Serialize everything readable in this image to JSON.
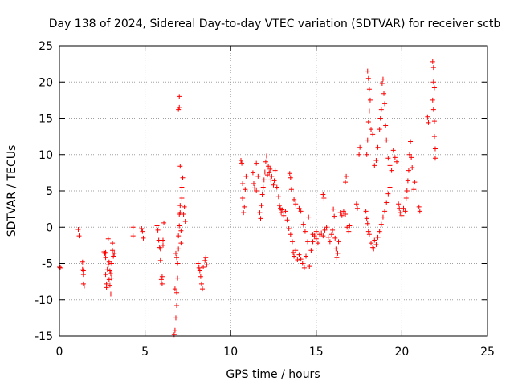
{
  "chart_data": {
    "type": "scatter",
    "title": "Day 138 of 2024, Sidereal Day-to-day VTEC variation (SDTVAR) for receiver sctb",
    "xlabel": "GPS time / hours",
    "ylabel": "SDTVAR / TECUs",
    "xlim": [
      0,
      25
    ],
    "ylim": [
      -15,
      25
    ],
    "xticks": [
      "0",
      "5",
      "10",
      "15",
      "20",
      "25"
    ],
    "yticks": [
      "-15",
      "-10",
      "-5",
      "0",
      "5",
      "10",
      "15",
      "20",
      "25"
    ],
    "grid": true,
    "marker": "+",
    "colors": {
      "series": "#ff0000",
      "grid": "#a0a0a0",
      "axis": "#000000"
    },
    "series": [
      {
        "name": "SDTVAR",
        "points": [
          [
            0.0,
            -5.5
          ],
          [
            0.05,
            -5.6
          ],
          [
            1.1,
            -0.3
          ],
          [
            1.15,
            -1.2
          ],
          [
            1.35,
            -4.8
          ],
          [
            1.35,
            -5.8
          ],
          [
            1.4,
            -6.5
          ],
          [
            1.4,
            -7.8
          ],
          [
            1.45,
            -8.1
          ],
          [
            1.4,
            -6.0
          ],
          [
            2.6,
            -3.4
          ],
          [
            2.65,
            -3.6
          ],
          [
            2.7,
            -3.5
          ],
          [
            2.7,
            -4.2
          ],
          [
            2.7,
            -6.5
          ],
          [
            2.75,
            -7.8
          ],
          [
            2.75,
            -8.3
          ],
          [
            2.8,
            -5.8
          ],
          [
            2.85,
            -5.2
          ],
          [
            2.9,
            -4.8
          ],
          [
            2.9,
            -7.2
          ],
          [
            2.95,
            -8.0
          ],
          [
            3.0,
            -6.4
          ],
          [
            3.0,
            -9.2
          ],
          [
            3.05,
            -7.0
          ],
          [
            3.05,
            -5.0
          ],
          [
            3.1,
            -3.2
          ],
          [
            3.1,
            -2.2
          ],
          [
            3.15,
            -4.0
          ],
          [
            3.2,
            -3.6
          ],
          [
            2.85,
            -1.6
          ],
          [
            2.95,
            -6.0
          ],
          [
            4.3,
            0.0
          ],
          [
            4.3,
            -1.2
          ],
          [
            4.8,
            -0.2
          ],
          [
            4.85,
            -0.6
          ],
          [
            4.9,
            -1.5
          ],
          [
            5.7,
            0.2
          ],
          [
            5.75,
            -0.4
          ],
          [
            5.8,
            -1.8
          ],
          [
            5.85,
            -2.8
          ],
          [
            5.9,
            -3.0
          ],
          [
            5.9,
            -4.6
          ],
          [
            5.95,
            -7.2
          ],
          [
            6.0,
            -7.8
          ],
          [
            6.0,
            -6.8
          ],
          [
            6.05,
            -1.8
          ],
          [
            6.1,
            0.6
          ],
          [
            6.05,
            -2.5
          ],
          [
            6.7,
            -14.8
          ],
          [
            6.75,
            -14.2
          ],
          [
            6.8,
            -12.5
          ],
          [
            6.85,
            -10.8
          ],
          [
            6.85,
            -9.0
          ],
          [
            6.9,
            -7.0
          ],
          [
            6.9,
            -5.0
          ],
          [
            6.95,
            -3.0
          ],
          [
            6.95,
            -1.2
          ],
          [
            7.0,
            0.2
          ],
          [
            7.0,
            1.8
          ],
          [
            7.05,
            3.0
          ],
          [
            7.05,
            2.0
          ],
          [
            7.1,
            -0.5
          ],
          [
            7.1,
            -2.2
          ],
          [
            7.15,
            4.0
          ],
          [
            7.15,
            5.5
          ],
          [
            7.2,
            6.8
          ],
          [
            7.25,
            1.8
          ],
          [
            7.3,
            2.8
          ],
          [
            7.35,
            0.8
          ],
          [
            7.0,
            18.0
          ],
          [
            7.0,
            16.5
          ],
          [
            6.95,
            16.2
          ],
          [
            7.05,
            8.4
          ],
          [
            6.8,
            -3.6
          ],
          [
            6.85,
            -4.2
          ],
          [
            6.75,
            -8.5
          ],
          [
            8.1,
            -5.0
          ],
          [
            8.15,
            -5.6
          ],
          [
            8.2,
            -6.0
          ],
          [
            8.25,
            -6.8
          ],
          [
            8.3,
            -7.8
          ],
          [
            8.35,
            -8.5
          ],
          [
            8.4,
            -5.5
          ],
          [
            8.5,
            -4.6
          ],
          [
            8.55,
            -4.2
          ],
          [
            8.6,
            -5.2
          ],
          [
            10.6,
            9.2
          ],
          [
            10.65,
            8.8
          ],
          [
            10.7,
            6.0
          ],
          [
            10.7,
            4.0
          ],
          [
            10.75,
            2.0
          ],
          [
            10.8,
            2.8
          ],
          [
            10.85,
            5.2
          ],
          [
            10.9,
            7.0
          ],
          [
            11.3,
            7.5
          ],
          [
            11.35,
            6.0
          ],
          [
            11.4,
            5.4
          ],
          [
            11.5,
            5.0
          ],
          [
            11.5,
            8.8
          ],
          [
            11.6,
            7.0
          ],
          [
            11.7,
            2.0
          ],
          [
            11.75,
            1.2
          ],
          [
            11.8,
            3.0
          ],
          [
            11.85,
            4.5
          ],
          [
            11.9,
            5.5
          ],
          [
            11.95,
            6.5
          ],
          [
            12.0,
            7.6
          ],
          [
            12.05,
            9.0
          ],
          [
            12.1,
            9.8
          ],
          [
            12.15,
            7.2
          ],
          [
            12.2,
            8.4
          ],
          [
            12.25,
            7.5
          ],
          [
            12.3,
            8.0
          ],
          [
            12.35,
            6.5
          ],
          [
            12.4,
            7.0
          ],
          [
            12.5,
            5.8
          ],
          [
            12.55,
            6.4
          ],
          [
            12.6,
            7.8
          ],
          [
            12.7,
            5.5
          ],
          [
            12.8,
            4.2
          ],
          [
            12.85,
            3.0
          ],
          [
            12.9,
            2.6
          ],
          [
            12.95,
            2.0
          ],
          [
            13.0,
            2.4
          ],
          [
            13.1,
            1.6
          ],
          [
            13.2,
            2.2
          ],
          [
            13.3,
            1.0
          ],
          [
            13.4,
            -0.2
          ],
          [
            13.5,
            -1.0
          ],
          [
            13.6,
            -2.0
          ],
          [
            13.65,
            -3.5
          ],
          [
            13.7,
            -4.0
          ],
          [
            13.8,
            -3.2
          ],
          [
            13.9,
            -4.5
          ],
          [
            14.0,
            -3.8
          ],
          [
            14.1,
            -4.4
          ],
          [
            14.2,
            -5.0
          ],
          [
            14.3,
            -5.6
          ],
          [
            14.4,
            -4.0
          ],
          [
            14.5,
            -2.0
          ],
          [
            13.45,
            7.4
          ],
          [
            13.5,
            6.8
          ],
          [
            13.55,
            5.2
          ],
          [
            13.7,
            3.8
          ],
          [
            13.8,
            3.2
          ],
          [
            14.0,
            2.6
          ],
          [
            14.1,
            2.2
          ],
          [
            14.25,
            0.4
          ],
          [
            14.35,
            -0.6
          ],
          [
            14.6,
            -5.4
          ],
          [
            14.7,
            -3.2
          ],
          [
            14.8,
            -2.0
          ],
          [
            14.9,
            -1.2
          ],
          [
            15.0,
            -1.6
          ],
          [
            15.1,
            -2.2
          ],
          [
            15.2,
            -1.0
          ],
          [
            15.3,
            -0.8
          ],
          [
            15.4,
            -1.2
          ],
          [
            15.5,
            -0.4
          ],
          [
            15.6,
            0.0
          ],
          [
            15.7,
            -1.4
          ],
          [
            15.8,
            -2.0
          ],
          [
            15.9,
            -1.0
          ],
          [
            15.95,
            -0.4
          ],
          [
            14.55,
            1.4
          ],
          [
            14.8,
            -1.0
          ],
          [
            15.0,
            -0.6
          ],
          [
            15.4,
            4.5
          ],
          [
            15.45,
            4.0
          ],
          [
            16.0,
            2.5
          ],
          [
            16.05,
            1.5
          ],
          [
            16.1,
            -1.5
          ],
          [
            16.15,
            -3.0
          ],
          [
            16.2,
            -4.2
          ],
          [
            16.25,
            -3.6
          ],
          [
            16.3,
            -2.0
          ],
          [
            16.4,
            2.0
          ],
          [
            16.5,
            1.6
          ],
          [
            16.6,
            2.2
          ],
          [
            16.7,
            1.8
          ],
          [
            16.8,
            0.0
          ],
          [
            16.9,
            -0.6
          ],
          [
            16.95,
            0.2
          ],
          [
            16.7,
            6.2
          ],
          [
            16.75,
            7.0
          ],
          [
            17.35,
            3.2
          ],
          [
            17.4,
            2.6
          ],
          [
            17.5,
            10.0
          ],
          [
            17.55,
            11.0
          ],
          [
            17.9,
            2.2
          ],
          [
            17.95,
            1.2
          ],
          [
            18.0,
            0.5
          ],
          [
            18.05,
            -0.6
          ],
          [
            18.1,
            -1.0
          ],
          [
            18.2,
            -2.2
          ],
          [
            18.3,
            -2.8
          ],
          [
            18.35,
            -3.0
          ],
          [
            18.4,
            -1.8
          ],
          [
            18.5,
            -2.4
          ],
          [
            18.6,
            -1.4
          ],
          [
            18.7,
            -0.6
          ],
          [
            18.8,
            0.4
          ],
          [
            18.9,
            1.4
          ],
          [
            19.0,
            2.2
          ],
          [
            19.1,
            3.4
          ],
          [
            19.2,
            4.6
          ],
          [
            19.3,
            5.5
          ],
          [
            18.0,
            21.5
          ],
          [
            18.05,
            20.5
          ],
          [
            18.1,
            19.0
          ],
          [
            18.1,
            16.0
          ],
          [
            18.05,
            14.5
          ],
          [
            18.0,
            12.0
          ],
          [
            17.95,
            10.0
          ],
          [
            18.15,
            17.5
          ],
          [
            18.2,
            13.5
          ],
          [
            18.3,
            12.8
          ],
          [
            18.4,
            8.5
          ],
          [
            18.5,
            9.2
          ],
          [
            18.6,
            11.0
          ],
          [
            18.7,
            13.5
          ],
          [
            18.75,
            15.0
          ],
          [
            18.8,
            16.2
          ],
          [
            18.85,
            19.8
          ],
          [
            18.9,
            20.4
          ],
          [
            18.95,
            18.4
          ],
          [
            19.0,
            17.0
          ],
          [
            19.05,
            14.0
          ],
          [
            19.1,
            12.0
          ],
          [
            19.2,
            9.5
          ],
          [
            19.3,
            8.5
          ],
          [
            19.4,
            7.8
          ],
          [
            19.5,
            10.6
          ],
          [
            19.6,
            9.6
          ],
          [
            19.7,
            9.0
          ],
          [
            19.8,
            3.2
          ],
          [
            19.85,
            2.6
          ],
          [
            19.9,
            2.0
          ],
          [
            20.0,
            1.6
          ],
          [
            20.1,
            2.6
          ],
          [
            20.2,
            2.2
          ],
          [
            20.25,
            4.0
          ],
          [
            20.3,
            5.0
          ],
          [
            20.35,
            6.4
          ],
          [
            20.4,
            7.8
          ],
          [
            20.45,
            10.0
          ],
          [
            20.5,
            11.8
          ],
          [
            20.55,
            9.6
          ],
          [
            20.6,
            8.2
          ],
          [
            20.7,
            5.2
          ],
          [
            20.75,
            6.2
          ],
          [
            21.0,
            2.8
          ],
          [
            21.05,
            2.2
          ],
          [
            21.5,
            15.2
          ],
          [
            21.55,
            14.4
          ],
          [
            21.8,
            22.8
          ],
          [
            21.85,
            22.0
          ],
          [
            21.85,
            20.0
          ],
          [
            21.9,
            19.2
          ],
          [
            21.8,
            17.5
          ],
          [
            21.85,
            16.2
          ],
          [
            21.9,
            14.6
          ],
          [
            21.9,
            12.5
          ],
          [
            21.95,
            10.8
          ],
          [
            21.95,
            9.5
          ]
        ]
      }
    ]
  }
}
